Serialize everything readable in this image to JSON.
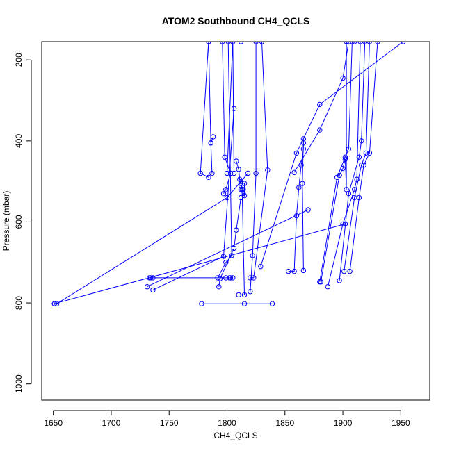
{
  "chart_data": {
    "type": "line",
    "title": "ATOM2 Southbound CH4_QCLS",
    "xlabel": "CH4_QCLS",
    "ylabel": "Pressure (mbar)",
    "xlim": [
      1640,
      1975
    ],
    "ylim": [
      1040,
      155
    ],
    "y_reversed": true,
    "x_ticks": [
      1650,
      1700,
      1750,
      1800,
      1850,
      1900,
      1950
    ],
    "y_ticks": [
      200,
      400,
      600,
      800,
      1000
    ],
    "grid": false,
    "legend": "none",
    "marker": "open-circle",
    "color": "#0000ff",
    "series": [
      {
        "x": [
          1797,
          1799,
          1803,
          1798,
          1796,
          1784,
          1777,
          1784
        ],
        "y": [
          530,
          520,
          480,
          440,
          155,
          155,
          480,
          490
        ]
      },
      {
        "x": [
          1808,
          1810,
          1811,
          1812,
          1812,
          1814,
          1814,
          1815,
          1815,
          1812,
          1812,
          1812,
          1808,
          1806,
          1794,
          1793
        ],
        "y": [
          450,
          470,
          495,
          505,
          510,
          520,
          530,
          535,
          505,
          500,
          520,
          540,
          620,
          665,
          740,
          760
        ]
      },
      {
        "x": [
          1788,
          1786,
          1784,
          1786,
          1787
        ],
        "y": [
          390,
          405,
          155,
          405,
          480
        ]
      },
      {
        "x": [
          1733,
          1734,
          1736,
          1799,
          1802,
          1803,
          1805
        ],
        "y": [
          738,
          738,
          738,
          738,
          738,
          738,
          738
        ]
      },
      {
        "x": [
          1651,
          1653,
          1800,
          1818
        ],
        "y": [
          802,
          802,
          540,
          480
        ]
      },
      {
        "x": [
          1731,
          1870
        ],
        "y": [
          760,
          570
        ]
      },
      {
        "x": [
          1651,
          1902
        ],
        "y": [
          802,
          605
        ]
      },
      {
        "x": [
          1778,
          1815,
          1839
        ],
        "y": [
          802,
          802,
          802
        ]
      },
      {
        "x": [
          1736,
          1797,
          1806
        ],
        "y": [
          768,
          685,
          320
        ]
      },
      {
        "x": [
          1820,
          1823,
          1835,
          1830
        ],
        "y": [
          738,
          738,
          472,
          155
        ]
      },
      {
        "x": [
          1853,
          1858,
          1860,
          1862,
          1864,
          1866,
          1866,
          1866,
          1865,
          1866
        ],
        "y": [
          722,
          722,
          585,
          515,
          460,
          420,
          405,
          395,
          505,
          720
        ]
      },
      {
        "x": [
          1810,
          1815,
          1813,
          1812,
          1812
        ],
        "y": [
          780,
          780,
          520,
          505,
          155
        ]
      },
      {
        "x": [
          1858,
          1880,
          1900,
          1905,
          1910
        ],
        "y": [
          478,
          373,
          245,
          155,
          155
        ]
      },
      {
        "x": [
          1880,
          1895,
          1902,
          1905,
          1908
        ],
        "y": [
          748,
          490,
          440,
          420,
          155
        ]
      },
      {
        "x": [
          1881,
          1897,
          1900,
          1902,
          1903,
          1903
        ],
        "y": [
          748,
          485,
          468,
          445,
          520,
          155
        ]
      },
      {
        "x": [
          1887,
          1900,
          1910,
          1912,
          1915
        ],
        "y": [
          760,
          605,
          520,
          495,
          155
        ]
      },
      {
        "x": [
          1897,
          1905,
          1914,
          1916,
          1919
        ],
        "y": [
          745,
          530,
          440,
          400,
          155
        ]
      },
      {
        "x": [
          1901,
          1910,
          1916,
          1920,
          1923
        ],
        "y": [
          722,
          540,
          460,
          430,
          155
        ]
      },
      {
        "x": [
          1906,
          1914,
          1918,
          1923,
          1930
        ],
        "y": [
          722,
          540,
          460,
          430,
          155
        ]
      },
      {
        "x": [
          1829,
          1860,
          1880,
          1952
        ],
        "y": [
          710,
          430,
          310,
          155
        ]
      },
      {
        "x": [
          1792,
          1799,
          1804,
          1801
        ],
        "y": [
          738,
          700,
          683,
          155
        ]
      },
      {
        "x": [
          1820,
          1822,
          1825,
          1825
        ],
        "y": [
          772,
          683,
          480,
          155
        ]
      },
      {
        "x": [
          1800,
          1805,
          1806
        ],
        "y": [
          480,
          155,
          480
        ]
      }
    ]
  }
}
